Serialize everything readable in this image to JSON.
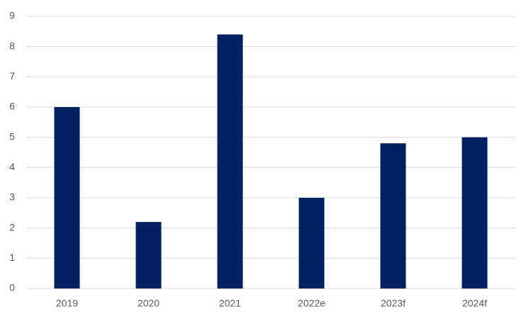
{
  "chart_data": {
    "type": "bar",
    "categories": [
      "2019",
      "2020",
      "2021",
      "2022e",
      "2023f",
      "2024f"
    ],
    "values": [
      6,
      2.2,
      8.4,
      3,
      4.8,
      5
    ],
    "color": "#002060",
    "ylim": [
      0,
      9
    ],
    "yticks": [
      0,
      1,
      2,
      3,
      4,
      5,
      6,
      7,
      8,
      9
    ],
    "grid": true
  }
}
